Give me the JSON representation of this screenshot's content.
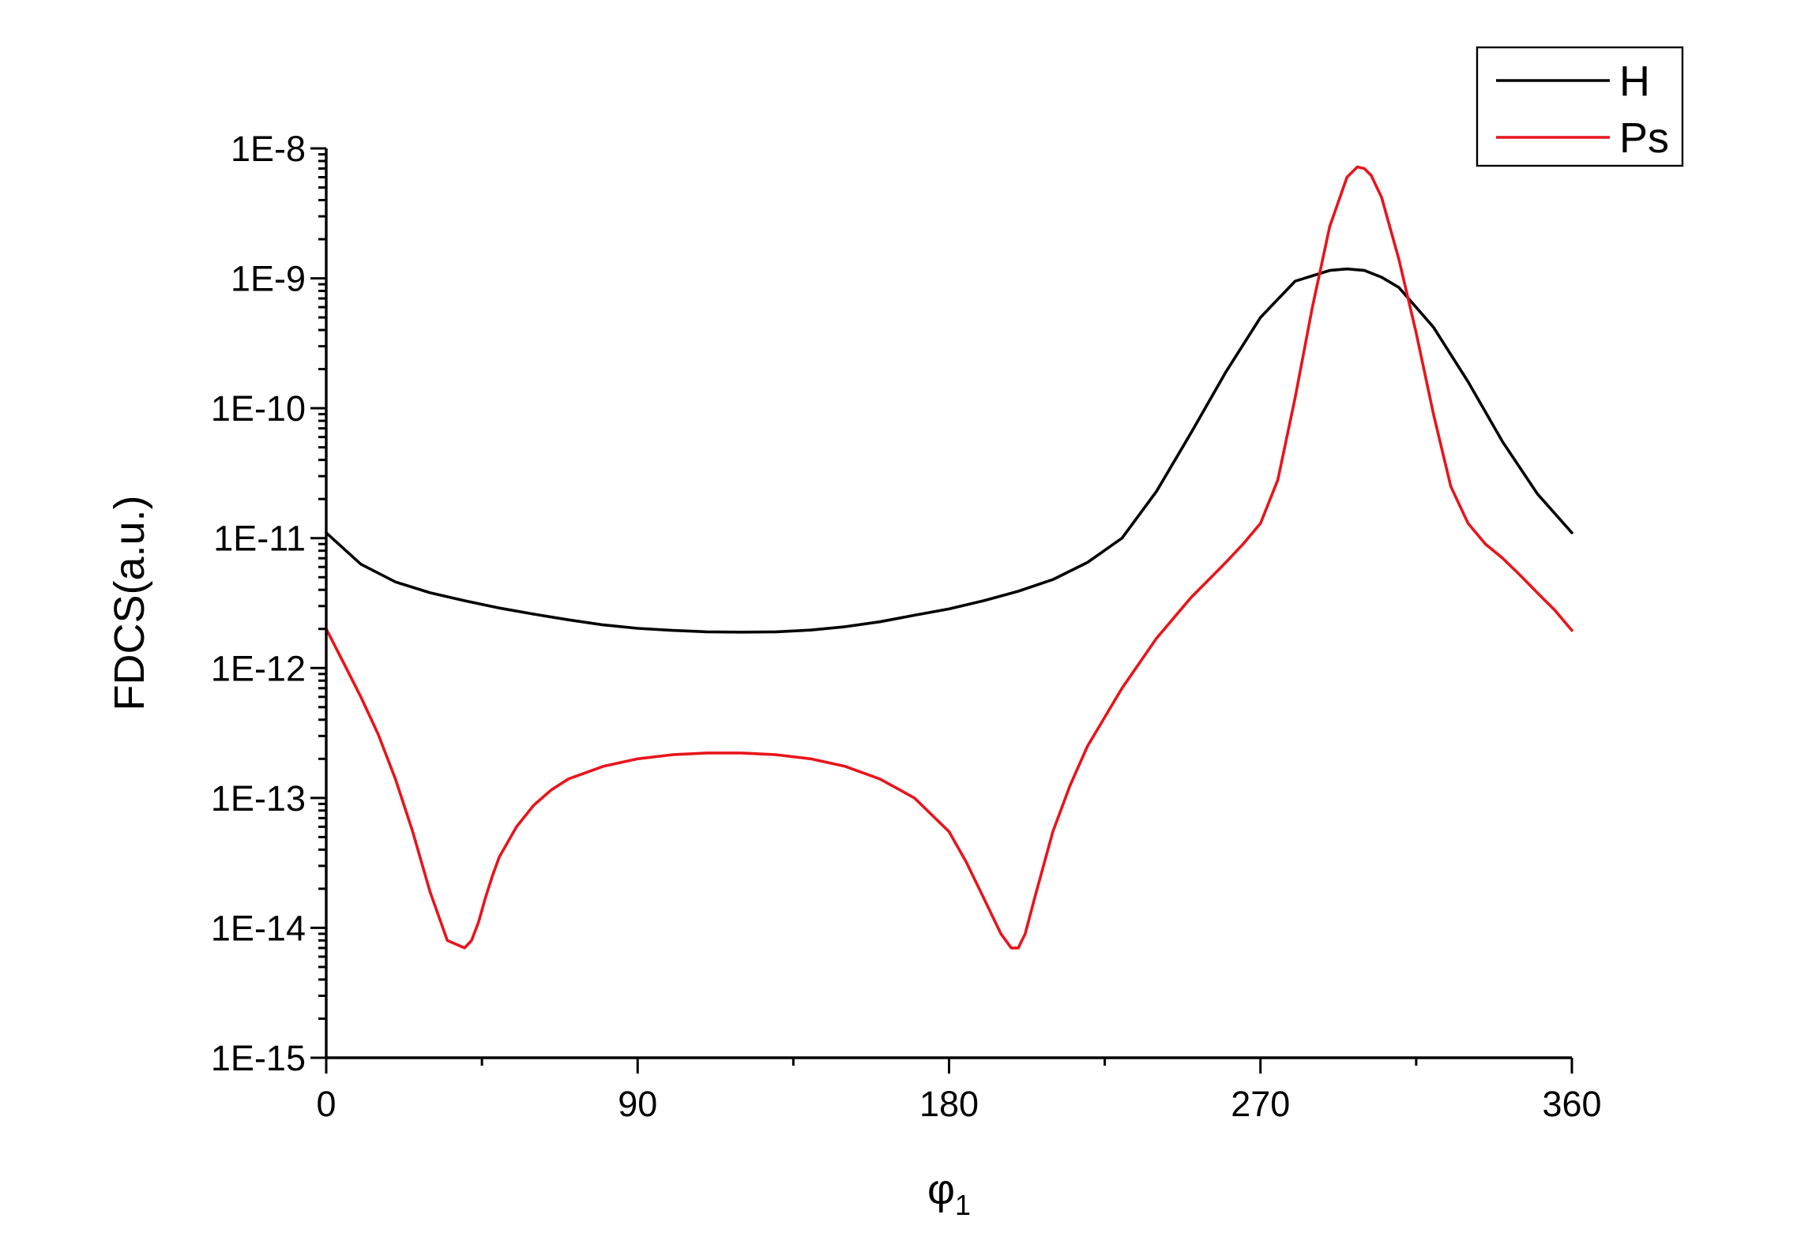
{
  "chart_data": {
    "type": "line",
    "xlabel": "φ",
    "xlabel_sub": "1",
    "ylabel": "FDCS(a.u.)",
    "xlim": [
      0,
      360
    ],
    "ylim": [
      1e-15,
      1e-08
    ],
    "yscale": "log",
    "grid": false,
    "legend_position": "top-right",
    "x_ticks": [
      0,
      90,
      180,
      270,
      360
    ],
    "x_tick_labels": [
      "0",
      "90",
      "180",
      "270",
      "360"
    ],
    "x_minor_ticks": [
      45,
      135,
      225,
      315
    ],
    "y_ticks": [
      1e-15,
      1e-14,
      1e-13,
      1e-12,
      1e-11,
      1e-10,
      1e-09,
      1e-08
    ],
    "y_tick_labels": [
      "1E-15",
      "1E-14",
      "1E-13",
      "1E-12",
      "1E-11",
      "1E-10",
      "1E-9",
      "1E-8"
    ],
    "series": [
      {
        "name": "H",
        "color": "#000000",
        "x": [
          0,
          10,
          20,
          30,
          40,
          50,
          60,
          70,
          80,
          90,
          100,
          110,
          120,
          130,
          140,
          150,
          160,
          170,
          180,
          190,
          200,
          210,
          220,
          230,
          240,
          250,
          260,
          270,
          280,
          290,
          295,
          300,
          305,
          310,
          320,
          330,
          340,
          350,
          360
        ],
        "y": [
          1.1e-11,
          6.3e-12,
          4.6e-12,
          3.8e-12,
          3.3e-12,
          2.9e-12,
          2.6e-12,
          2.35e-12,
          2.15e-12,
          2.02e-12,
          1.95e-12,
          1.9e-12,
          1.89e-12,
          1.9e-12,
          1.96e-12,
          2.08e-12,
          2.27e-12,
          2.55e-12,
          2.85e-12,
          3.3e-12,
          3.9e-12,
          4.8e-12,
          6.5e-12,
          1e-11,
          2.3e-11,
          6.5e-11,
          1.9e-10,
          5e-10,
          9.5e-10,
          1.15e-09,
          1.18e-09,
          1.15e-09,
          1.02e-09,
          8.5e-10,
          4.2e-10,
          1.6e-10,
          5.5e-11,
          2.2e-11,
          1.1e-11
        ]
      },
      {
        "name": "Ps",
        "color": "#e8141b",
        "x": [
          0,
          5,
          10,
          15,
          20,
          25,
          30,
          35,
          40,
          42,
          44,
          46,
          48,
          50,
          55,
          60,
          65,
          70,
          80,
          90,
          100,
          110,
          120,
          130,
          140,
          150,
          160,
          170,
          180,
          185,
          190,
          195,
          198,
          200,
          202,
          205,
          210,
          215,
          220,
          230,
          240,
          250,
          260,
          265,
          270,
          275,
          280,
          285,
          290,
          295,
          298,
          300,
          302,
          305,
          310,
          315,
          320,
          325,
          330,
          335,
          340,
          345,
          350,
          355,
          360
        ],
        "y": [
          2e-12,
          1.1e-12,
          6e-13,
          3.1e-13,
          1.4e-13,
          5.5e-14,
          1.9e-14,
          8e-15,
          7e-15,
          8e-15,
          1.1e-14,
          1.7e-14,
          2.5e-14,
          3.5e-14,
          6e-14,
          8.8e-14,
          1.15e-13,
          1.4e-13,
          1.75e-13,
          2e-13,
          2.15e-13,
          2.22e-13,
          2.22e-13,
          2.15e-13,
          2e-13,
          1.75e-13,
          1.4e-13,
          1e-13,
          5.5e-14,
          3.2e-14,
          1.7e-14,
          9e-15,
          7e-15,
          7e-15,
          9e-15,
          1.8e-14,
          5.5e-14,
          1.25e-13,
          2.5e-13,
          7e-13,
          1.7e-12,
          3.5e-12,
          6.5e-12,
          9e-12,
          1.3e-11,
          2.8e-11,
          1.2e-10,
          6e-10,
          2.5e-09,
          6e-09,
          7.2e-09,
          7e-09,
          6.2e-09,
          4.2e-09,
          1.4e-09,
          3.8e-10,
          9e-11,
          2.5e-11,
          1.3e-11,
          9e-12,
          7e-12,
          5.2e-12,
          3.8e-12,
          2.8e-12,
          1.95e-12
        ]
      }
    ]
  }
}
